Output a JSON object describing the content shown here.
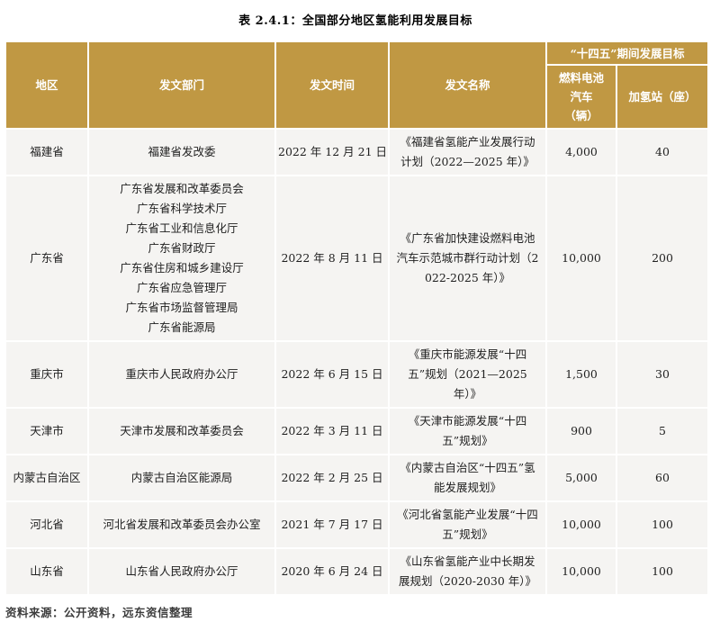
{
  "title": "表 2.4.1：全国部分地区氢能利用发展目标",
  "table": {
    "headers": {
      "region": "地区",
      "department": "发文部门",
      "date": "发文时间",
      "doc_name": "发文名称",
      "group": "“十四五”期间发展目标",
      "fcv": "燃料电池\n汽车\n（辆）",
      "station": "加氢站（座）"
    },
    "rows": [
      {
        "region": "福建省",
        "department": "福建省发改委",
        "date": "2022 年 12 月 21 日",
        "doc": "《福建省氢能产业发展行动计划（2022—2025 年）》",
        "fcv": "4,000",
        "station": "40"
      },
      {
        "region": "广东省",
        "department": "广东省发展和改革委员会\n广东省科学技术厅\n广东省工业和信息化厅\n广东省财政厅\n广东省住房和城乡建设厅\n广东省应急管理厅\n广东省市场监督管理局\n广东省能源局",
        "date": "2022 年 8 月 11 日",
        "doc": "《广东省加快建设燃料电池汽车示范城市群行动计划（2022-2025 年）》",
        "fcv": "10,000",
        "station": "200"
      },
      {
        "region": "重庆市",
        "department": "重庆市人民政府办公厅",
        "date": "2022 年 6 月 15 日",
        "doc": "《重庆市能源发展“十四五”规划（2021—2025 年）》",
        "fcv": "1,500",
        "station": "30"
      },
      {
        "region": "天津市",
        "department": "天津市发展和改革委员会",
        "date": "2022 年 3 月 11 日",
        "doc": "《天津市能源发展“十四五”规划》",
        "fcv": "900",
        "station": "5"
      },
      {
        "region": "内蒙古自治区",
        "department": "内蒙古自治区能源局",
        "date": "2022 年 2 月 25 日",
        "doc": "《内蒙古自治区“十四五”氢能发展规划》",
        "fcv": "5,000",
        "station": "60"
      },
      {
        "region": "河北省",
        "department": "河北省发展和改革委员会办公室",
        "date": "2021 年 7 月 17 日",
        "doc": "《河北省氢能产业发展“十四五”规划》",
        "fcv": "10,000",
        "station": "100"
      },
      {
        "region": "山东省",
        "department": "山东省人民政府办公厅",
        "date": "2020 年 6 月 24 日",
        "doc": "《山东省氢能产业中长期发展规划（2020-2030 年）》",
        "fcv": "10,000",
        "station": "100"
      }
    ]
  },
  "footer": "资料来源：公开资料，远东资信整理",
  "colors": {
    "header_bg": "#C09843",
    "header_text": "#FFFFFF",
    "cell_bg": "#F5F4F2",
    "body_text": "#212121"
  }
}
